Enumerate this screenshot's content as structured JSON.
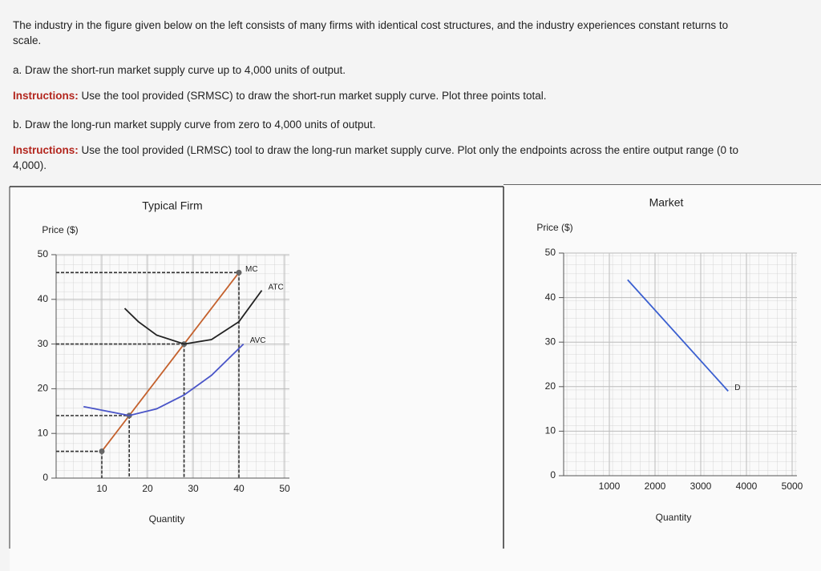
{
  "question": {
    "intro": "The industry in the figure given below on the left consists of many firms with identical cost structures, and the industry experiences constant returns to scale.",
    "part_a": {
      "text": "a. Draw the short-run market supply curve up to 4,000 units of output.",
      "instructions_label": "Instructions:",
      "instructions": "Use the tool provided (SRMSC) to draw the short-run market supply curve. Plot three points total."
    },
    "part_b": {
      "text": "b. Draw the long-run market supply curve from zero to 4,000 units of output.",
      "instructions_label": "Instructions:",
      "instructions": "Use the tool provided (LRMSC) tool to draw the long-run market supply curve. Plot only the endpoints across the entire output range (0 to 4,000)."
    }
  },
  "chart_data": [
    {
      "type": "line",
      "title": "Typical Firm",
      "ylabel": "Price ($)",
      "xlabel": "Quantity",
      "xlim": [
        0,
        50
      ],
      "xticks": [
        10,
        20,
        30,
        40,
        50
      ],
      "ylim": [
        0,
        50
      ],
      "yticks": [
        0,
        10,
        20,
        30,
        40,
        50
      ],
      "grid": true,
      "guides": true,
      "series": [
        {
          "name": "MC",
          "color": "#c4612d",
          "markers": true,
          "x": [
            10,
            16,
            28,
            40
          ],
          "values": [
            6,
            14,
            30,
            46
          ]
        },
        {
          "name": "ATC",
          "color": "#222222",
          "x": [
            15,
            18,
            22,
            28,
            34,
            40,
            45
          ],
          "values": [
            38,
            35,
            32,
            30,
            31,
            35,
            42
          ]
        },
        {
          "name": "AVC",
          "color": "#4a55c8",
          "x": [
            6,
            16,
            22,
            28,
            34,
            41
          ],
          "values": [
            16,
            14,
            15.5,
            18.6,
            23,
            30
          ]
        }
      ]
    },
    {
      "type": "line",
      "title": "Market",
      "ylabel": "Price ($)",
      "xlabel": "Quantity",
      "xlim": [
        0,
        5000
      ],
      "xticks": [
        1000,
        2000,
        3000,
        4000,
        5000
      ],
      "ylim": [
        0,
        50
      ],
      "yticks": [
        0,
        10,
        20,
        30,
        40,
        50
      ],
      "grid": true,
      "series": [
        {
          "name": "D",
          "color": "#3a5fd0",
          "x": [
            1400,
            3600
          ],
          "values": [
            44,
            19
          ]
        }
      ]
    }
  ]
}
